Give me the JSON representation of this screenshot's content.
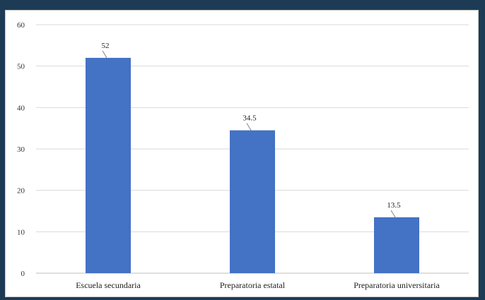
{
  "chart_data": {
    "type": "bar",
    "categories": [
      "Escuela secundaria",
      "Preparatoria estatal",
      "Preparatoria universitaria"
    ],
    "values": [
      52,
      34.5,
      13.5
    ],
    "data_labels": [
      "52",
      "34.5",
      "13.5"
    ],
    "ylim": [
      0,
      60
    ],
    "yticks": [
      0,
      10,
      20,
      30,
      40,
      50,
      60
    ],
    "grid": true,
    "bar_color": "#4472c4",
    "grid_color": "#d9d9d9"
  }
}
